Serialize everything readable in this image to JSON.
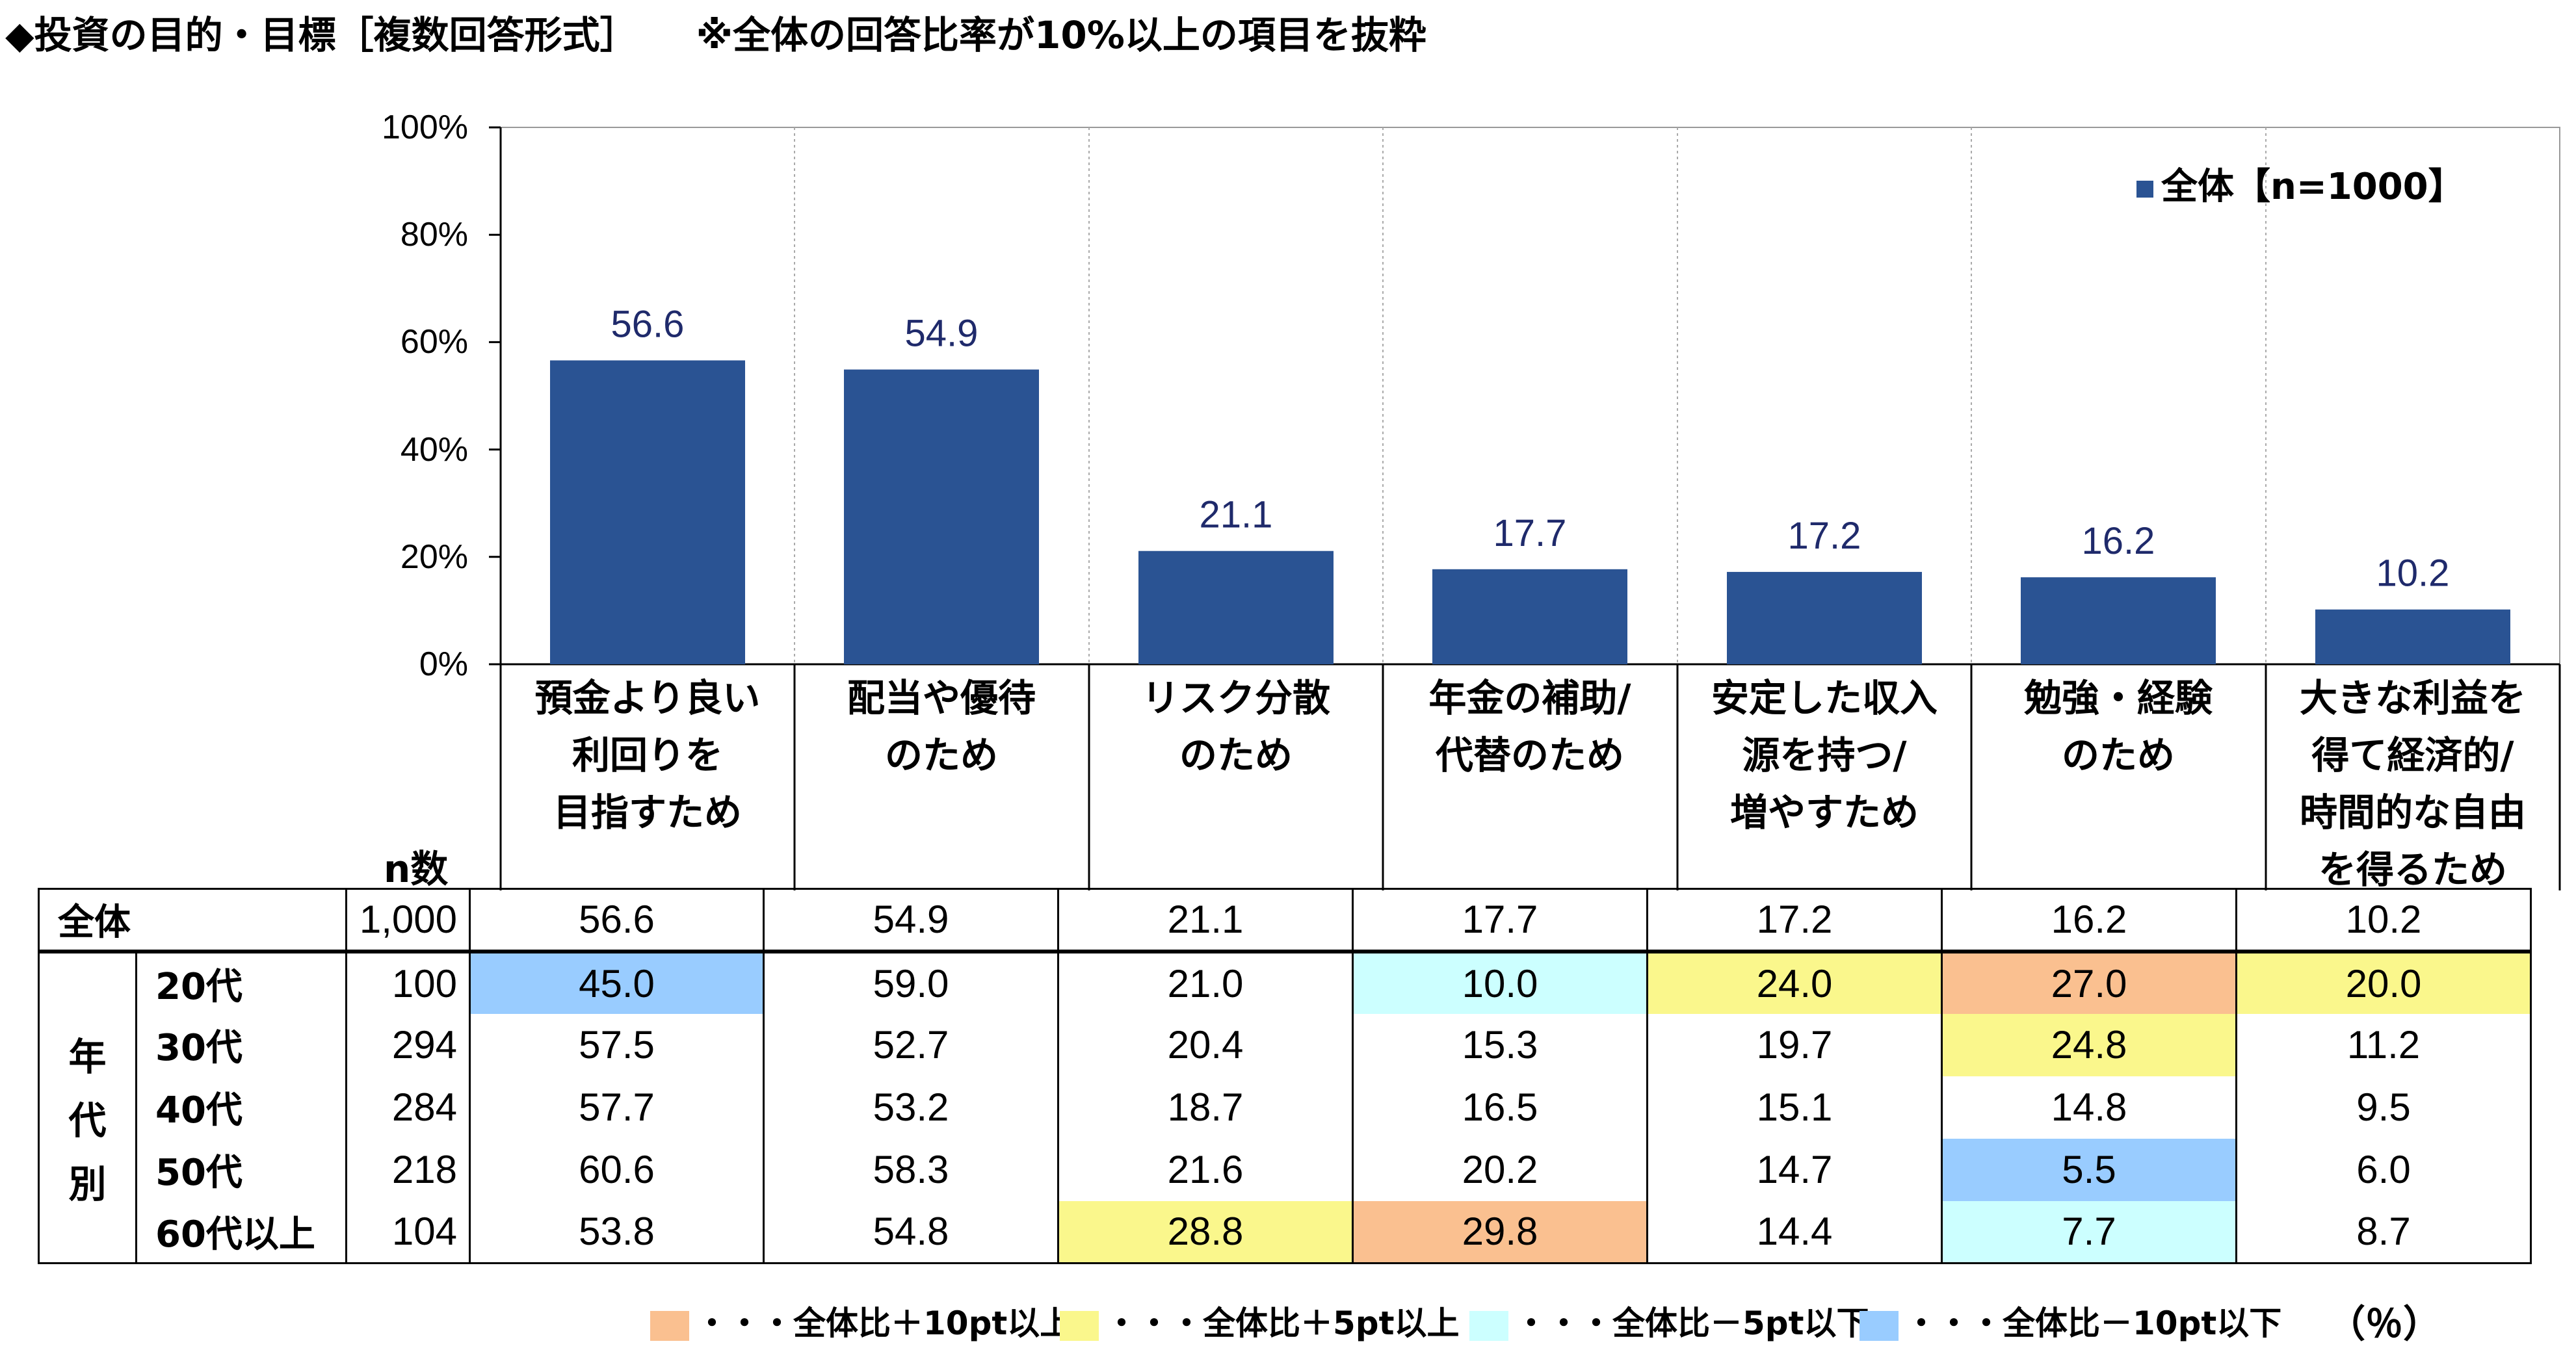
{
  "title": "◆投資の目的・目標［複数回答形式］",
  "note": "※全体の回答比率が10%以上の項目を抜粋",
  "legend": "全体【n=1000】",
  "n_header": "n数",
  "unit": "（％）",
  "colors": {
    "bar": "#2A5393",
    "label": "#1F2A6B",
    "plus10": "#FAC090",
    "plus5": "#FAF78C",
    "minus5": "#CCFFFF",
    "minus10": "#99CCFF"
  },
  "chart_data": {
    "type": "bar",
    "categories": [
      [
        "預金より良い",
        "利回りを",
        "目指すため"
      ],
      [
        "配当や優待",
        "のため"
      ],
      [
        "リスク分散",
        "のため"
      ],
      [
        "年金の補助/",
        "代替のため"
      ],
      [
        "安定した収入",
        "源を持つ/",
        "増やすため"
      ],
      [
        "勉強・経験",
        "のため"
      ],
      [
        "大きな利益を",
        "得て経済的/",
        "時間的な自由",
        "を得るため"
      ]
    ],
    "series": [
      {
        "name": "全体【n=1000】",
        "values": [
          56.6,
          54.9,
          21.1,
          17.7,
          17.2,
          16.2,
          10.2
        ]
      }
    ],
    "value_labels": [
      "56.6",
      "54.9",
      "21.1",
      "17.7",
      "17.2",
      "16.2",
      "10.2"
    ],
    "yticks": [
      "0%",
      "20%",
      "40%",
      "60%",
      "80%",
      "100%"
    ],
    "ylim": [
      0,
      100
    ],
    "grid": "vertical dotted separators",
    "legend_position": "top-right"
  },
  "table": {
    "total": {
      "label": "全体",
      "n": "1,000",
      "values": [
        "56.6",
        "54.9",
        "21.1",
        "17.7",
        "17.2",
        "16.2",
        "10.2"
      ]
    },
    "group_label": [
      "年",
      "代",
      "別"
    ],
    "rows": [
      {
        "label": "20代",
        "n": "100",
        "values": [
          "45.0",
          "59.0",
          "21.0",
          "10.0",
          "24.0",
          "27.0",
          "20.0"
        ],
        "marks": [
          "minus10",
          "",
          "",
          "minus5",
          "plus5",
          "plus10",
          "plus5"
        ]
      },
      {
        "label": "30代",
        "n": "294",
        "values": [
          "57.5",
          "52.7",
          "20.4",
          "15.3",
          "19.7",
          "24.8",
          "11.2"
        ],
        "marks": [
          "",
          "",
          "",
          "",
          "",
          "plus5",
          ""
        ]
      },
      {
        "label": "40代",
        "n": "284",
        "values": [
          "57.7",
          "53.2",
          "18.7",
          "16.5",
          "15.1",
          "14.8",
          "9.5"
        ],
        "marks": [
          "",
          "",
          "",
          "",
          "",
          "",
          ""
        ]
      },
      {
        "label": "50代",
        "n": "218",
        "values": [
          "60.6",
          "58.3",
          "21.6",
          "20.2",
          "14.7",
          "5.5",
          "6.0"
        ],
        "marks": [
          "",
          "",
          "",
          "",
          "",
          "minus10",
          ""
        ]
      },
      {
        "label": "60代以上",
        "n": "104",
        "values": [
          "53.8",
          "54.8",
          "28.8",
          "29.8",
          "14.4",
          "7.7",
          "8.7"
        ],
        "marks": [
          "",
          "",
          "plus5",
          "plus10",
          "",
          "minus5",
          ""
        ]
      }
    ]
  },
  "key": [
    {
      "mark": "plus10",
      "text": "・・・全体比＋10pt以上"
    },
    {
      "mark": "plus5",
      "text": "・・・全体比＋5pt以上"
    },
    {
      "mark": "minus5",
      "text": "・・・全体比－5pt以下"
    },
    {
      "mark": "minus10",
      "text": "・・・全体比－10pt以下"
    }
  ]
}
